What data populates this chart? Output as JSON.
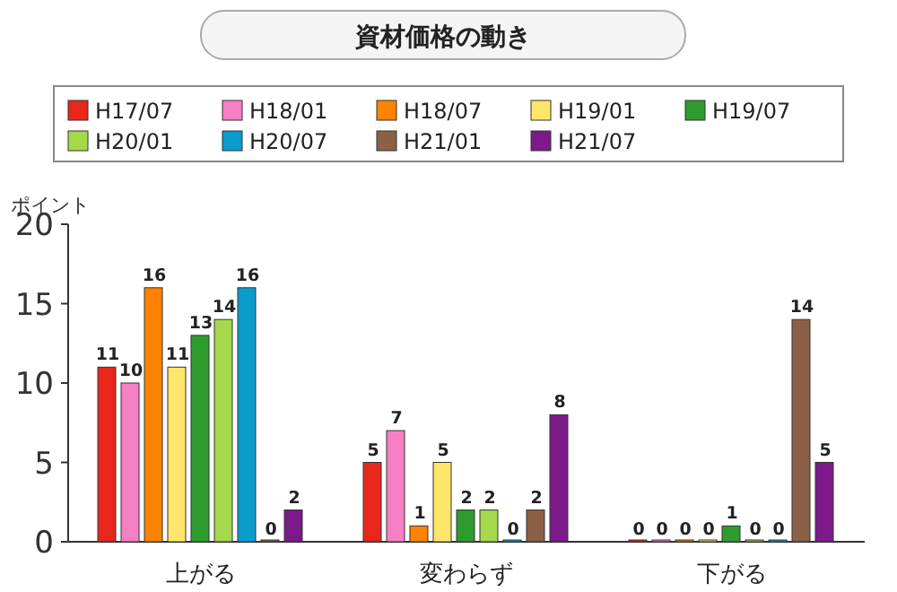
{
  "chart_data": {
    "type": "bar",
    "title": "資材価格の動き",
    "ylabel": "ポイント",
    "categories": [
      "上がる",
      "変わらず",
      "下がる"
    ],
    "series": [
      {
        "name": "H17/07",
        "color": "#e8261c",
        "values": [
          11,
          5,
          0
        ]
      },
      {
        "name": "H18/01",
        "color": "#f77fc4",
        "values": [
          10,
          7,
          0
        ]
      },
      {
        "name": "H18/07",
        "color": "#ff8200",
        "values": [
          16,
          1,
          0
        ]
      },
      {
        "name": "H19/01",
        "color": "#ffe66a",
        "values": [
          11,
          5,
          0
        ]
      },
      {
        "name": "H19/07",
        "color": "#2e9b2e",
        "values": [
          13,
          2,
          1
        ]
      },
      {
        "name": "H20/01",
        "color": "#a6d84c",
        "values": [
          14,
          2,
          0
        ]
      },
      {
        "name": "H20/07",
        "color": "#0a9ccc",
        "values": [
          16,
          0,
          0
        ]
      },
      {
        "name": "H21/01",
        "color": "#8c6046",
        "values": [
          0,
          2,
          14
        ]
      },
      {
        "name": "H21/07",
        "color": "#7b1a88",
        "values": [
          2,
          8,
          5
        ]
      }
    ],
    "ylim": [
      0,
      20
    ],
    "yticks": [
      0,
      5,
      10,
      15,
      20
    ],
    "data_labels": true,
    "legend": "top"
  }
}
